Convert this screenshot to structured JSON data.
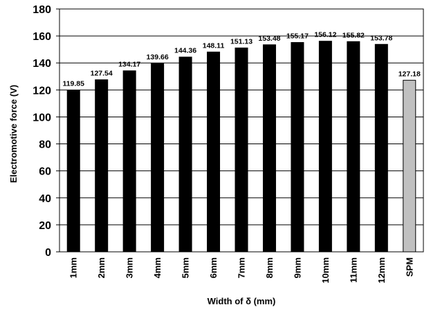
{
  "chart_data": {
    "type": "bar",
    "categories": [
      "1mm",
      "2mm",
      "3mm",
      "4mm",
      "5mm",
      "6mm",
      "7mm",
      "8mm",
      "9mm",
      "10mm",
      "11mm",
      "12mm",
      "SPM"
    ],
    "values": [
      119.85,
      127.54,
      134.17,
      139.66,
      144.36,
      148.11,
      151.13,
      153.48,
      155.17,
      156.12,
      155.82,
      153.78,
      127.18
    ],
    "data_labels": [
      "119.85",
      "127.54",
      "134.17",
      "139.66",
      "144.36",
      "148.11",
      "151.13",
      "153.48",
      "155.17",
      "156.12",
      "155.82",
      "153.78",
      "127.18"
    ],
    "bar_colors": [
      "#000000",
      "#000000",
      "#000000",
      "#000000",
      "#000000",
      "#000000",
      "#000000",
      "#000000",
      "#000000",
      "#000000",
      "#000000",
      "#000000",
      "#c0c0c0"
    ],
    "xlabel": "Width of δ (mm)",
    "ylabel": "Electromotive force  (V)",
    "ylim": [
      0,
      180
    ],
    "yticks": [
      0,
      20,
      40,
      60,
      80,
      100,
      120,
      140,
      160,
      180
    ],
    "grid": true,
    "legend": "none"
  }
}
